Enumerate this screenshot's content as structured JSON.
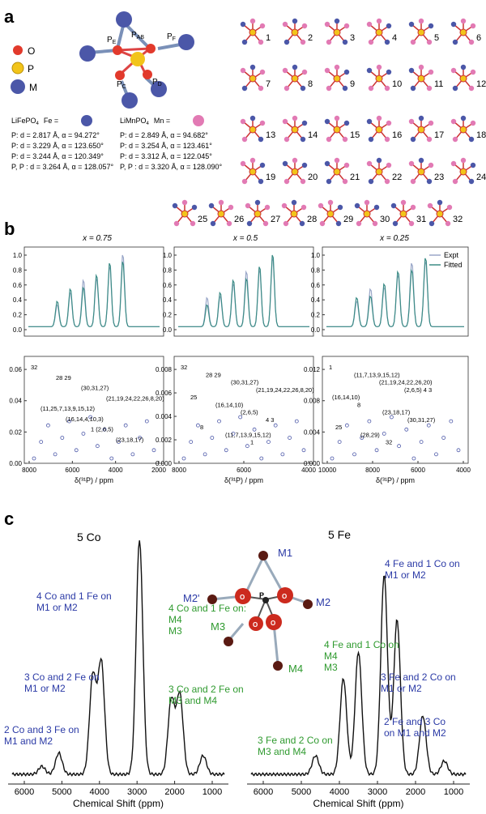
{
  "panel_labels": {
    "a": "a",
    "b": "b",
    "c": "c"
  },
  "panel_a": {
    "legend": {
      "o": "O",
      "p": "P",
      "m": "M"
    },
    "bond_labels": {
      "pab": "P",
      "pab_sub": "AB",
      "pe": "P",
      "pe_sub": "E",
      "pf": "P",
      "pf_sub": "F",
      "pc": "P",
      "pc_sub": "C",
      "pd": "P",
      "pd_sub": "D"
    },
    "left": {
      "compound": "LiFePO",
      "sub": "4",
      "metal_label": "Fe =",
      "lines": [
        "P: d = 2.817 Å, α = 94.272°",
        "P: d = 3.229 Å, α = 123.650°",
        "P: d = 3.244 Å, α = 120.349°",
        "P, P : d = 3.264 Å, α = 128.057°"
      ],
      "line_subs": [
        "AB",
        "C",
        "D",
        "E F"
      ]
    },
    "right": {
      "compound": "LiMnPO",
      "sub": "4",
      "metal_label": "Mn =",
      "lines": [
        "P: d = 2.849 Å, α = 94.682°",
        "P: d = 3.254 Å, α = 123.461°",
        "P: d = 3.312 Å, α = 122.045°",
        "P, P : d = 3.320 Å, α = 128.090°"
      ]
    },
    "configs": [
      "1",
      "2",
      "3",
      "4",
      "5",
      "6",
      "7",
      "8",
      "9",
      "10",
      "11",
      "12",
      "13",
      "14",
      "15",
      "16",
      "17",
      "18",
      "19",
      "20",
      "21",
      "22",
      "23",
      "24",
      "25",
      "26",
      "27",
      "28",
      "29",
      "30",
      "31",
      "32"
    ],
    "colors": {
      "O": "#e23a2c",
      "P": "#f2c41a",
      "Fe": "#4b57a8",
      "Mn": "#e27ab4"
    }
  },
  "panel_b": {
    "titles": [
      "x = 0.75",
      "x = 0.5",
      "x = 0.25"
    ],
    "legend": [
      "Expt",
      "Fitted"
    ],
    "xlabel": "δ(³¹P) / ppm",
    "top_yticks": [
      "0.0",
      "0.2",
      "0.4",
      "0.6",
      "0.8",
      "1.0"
    ],
    "bottom_axes": [
      {
        "xticks": [
          "8000",
          "6000",
          "4000",
          "2000"
        ],
        "yticks": [
          "0.00",
          "0.02",
          "0.04",
          "0.06"
        ],
        "xlim": [
          8000,
          2000
        ],
        "ylim": [
          0,
          0.068
        ]
      },
      {
        "xticks": [
          "8000",
          "6000",
          "4000"
        ],
        "yticks": [
          "0.000",
          "0.002",
          "0.004",
          "0.006",
          "0.008"
        ],
        "xlim": [
          8500,
          3000
        ],
        "ylim": [
          0,
          0.0095
        ]
      },
      {
        "xticks": [
          "10000",
          "8000",
          "6000",
          "4000"
        ],
        "yticks": [
          "0.000",
          "0.004",
          "0.008",
          "0.012"
        ],
        "xlim": [
          10000,
          3500
        ],
        "ylim": [
          0,
          0.012
        ]
      }
    ],
    "annotations": [
      [
        "32",
        "28 29",
        "(30,31,27)",
        "(21,19,24,22,26,8,20)",
        "(11,25,7,13,9,15,12)",
        "(16,14,4,10,3)",
        "1 (2,6,5)",
        "(23,18,17)"
      ],
      [
        "32",
        "28 29",
        "(30,31,27)",
        "(21,19,24,22,26,8,20)",
        "25",
        "(16,14,10)",
        "(2,6,5)",
        "4 3",
        "8",
        "(11,7,13,9,15,12)",
        "1"
      ],
      [
        "1",
        "(11,7,13,9,15,12)",
        "(21,19,24,22,26,20)",
        "(2,6,5) 4 3",
        "(16,14,10)",
        "8",
        "(23,18,17)",
        "(30,31,27)",
        "25",
        "(28,29)",
        "32"
      ]
    ]
  },
  "panel_c": {
    "left": {
      "title": "5 Co",
      "notes": [
        "4 Co and 1 Fe on\nM1 or M2",
        "3 Co and 2 Fe on\nM1 or M2",
        "2 Co and 3 Fe on\nM1 and M2",
        "4 Co and 1 Fe on:\nM4\nM3",
        "3 Co and 2 Fe on\nM3 and M4"
      ]
    },
    "right": {
      "title": "5 Fe",
      "notes": [
        "4 Fe and 1 Co on\nM1 or M2",
        "4 Fe and 1 Co on\nM4\nM3",
        "3 Fe and 2 Co on\nM1 or M2",
        "2 Fe and 3 Co\non M1 and M2",
        "3 Fe and 2 Co on\nM3 and M4"
      ]
    },
    "struct_labels": [
      "M1",
      "M2'",
      "M2",
      "M3",
      "M4",
      "P"
    ],
    "xlabel": "Chemical Shift (ppm)",
    "xticks": [
      "6000",
      "5000",
      "4000",
      "3000",
      "2000",
      "1000"
    ],
    "blue": "#2b3aa6",
    "green": "#2f9a2f"
  }
}
